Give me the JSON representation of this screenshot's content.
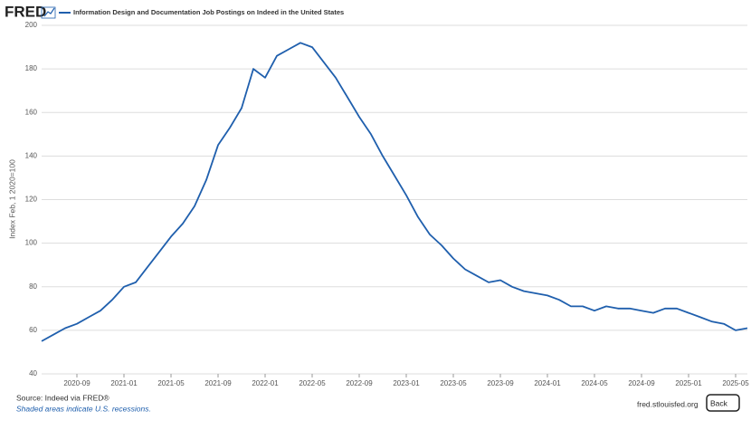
{
  "chart_data": {
    "type": "line",
    "logo": "FRED",
    "title": "Information Design and Documentation Job Postings on Indeed in the United States",
    "y_label": "Index Feb, 1 2020=100",
    "source": "Source: Indeed via FRED®",
    "note": "Shaded areas indicate U.S. recessions.",
    "site": "fred.stlouisfed.org",
    "button": "Back",
    "x": [
      "2020-06",
      "2020-07",
      "2020-08",
      "2020-09",
      "2020-10",
      "2020-11",
      "2020-12",
      "2021-01",
      "2021-02",
      "2021-03",
      "2021-04",
      "2021-05",
      "2021-06",
      "2021-07",
      "2021-08",
      "2021-09",
      "2021-10",
      "2021-11",
      "2021-12",
      "2022-01",
      "2022-02",
      "2022-03",
      "2022-04",
      "2022-05",
      "2022-06",
      "2022-07",
      "2022-08",
      "2022-09",
      "2022-10",
      "2022-11",
      "2022-12",
      "2023-01",
      "2023-02",
      "2023-03",
      "2023-04",
      "2023-05",
      "2023-06",
      "2023-07",
      "2023-08",
      "2023-09",
      "2023-10",
      "2023-11",
      "2023-12",
      "2024-01",
      "2024-02",
      "2024-03",
      "2024-04",
      "2024-05",
      "2024-06",
      "2024-07",
      "2024-08",
      "2024-09",
      "2024-10",
      "2024-11",
      "2024-12",
      "2025-01",
      "2025-02",
      "2025-03",
      "2025-04",
      "2025-05",
      "2025-06"
    ],
    "series": [
      {
        "name": "Information Design and Documentation Job Postings on Indeed in the United States",
        "color": "#1f5fad",
        "values": [
          55,
          58,
          61,
          63,
          66,
          69,
          74,
          80,
          82,
          89,
          96,
          103,
          109,
          117,
          129,
          145,
          153,
          162,
          180,
          176,
          186,
          189,
          192,
          190,
          183,
          176,
          167,
          158,
          150,
          140,
          131,
          122,
          112,
          104,
          99,
          93,
          88,
          85,
          82,
          83,
          80,
          78,
          77,
          76,
          74,
          71,
          71,
          69,
          71,
          70,
          70,
          69,
          68,
          70,
          70,
          68,
          66,
          64,
          63,
          60,
          61
        ]
      }
    ],
    "xlim": [
      "2020-06",
      "2025-06"
    ],
    "xticks": [
      "2020-09",
      "2021-01",
      "2021-05",
      "2021-09",
      "2022-01",
      "2022-05",
      "2022-09",
      "2023-01",
      "2023-05",
      "2023-09",
      "2024-01",
      "2024-05",
      "2024-09",
      "2025-01",
      "2025-05"
    ],
    "ylim": [
      40,
      200
    ],
    "yticks": [
      40,
      60,
      80,
      100,
      120,
      140,
      160,
      180,
      200
    ],
    "grid": true
  }
}
